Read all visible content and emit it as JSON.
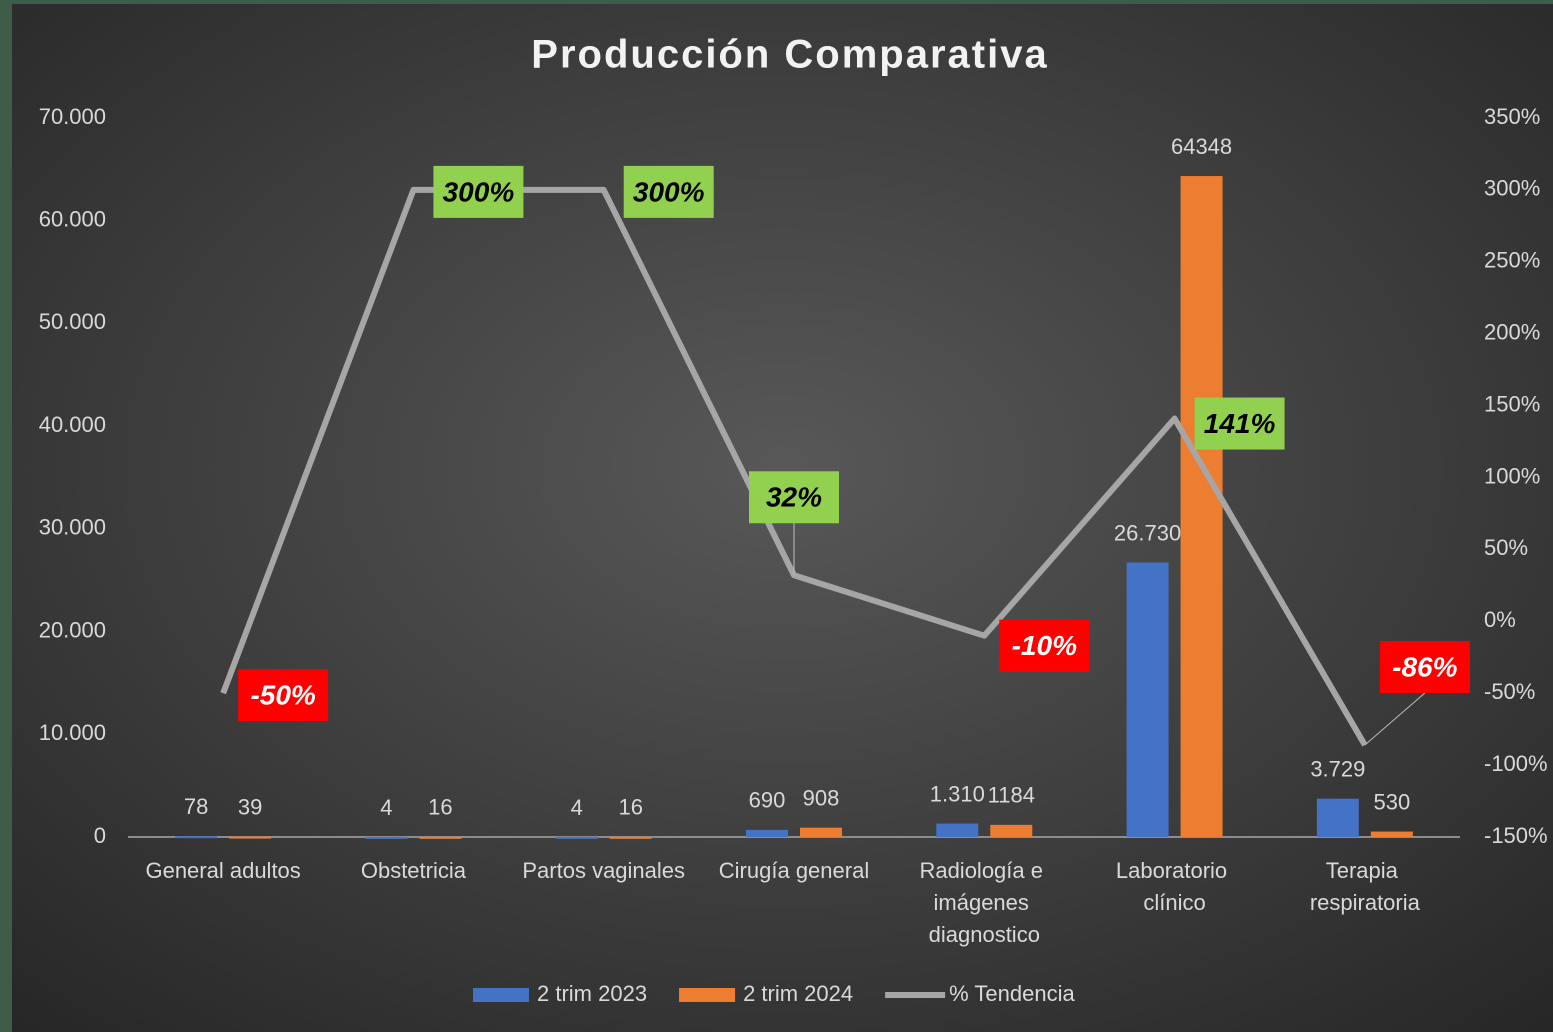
{
  "chart_data": {
    "type": "bar_line",
    "title": "Producción Comparativa",
    "categories": [
      "General adultos",
      "Obstetricia",
      "Partos vaginales",
      "Cirugía general",
      "Radiología e imágenes diagnostico",
      "Laboratorio clínico",
      "Terapia respiratoria"
    ],
    "series": [
      {
        "name": "2 trim 2023",
        "type": "bar",
        "color": "#4472c4",
        "values": [
          78,
          4,
          4,
          690,
          1310,
          26730,
          3729
        ],
        "value_labels": [
          "78",
          "4",
          "4",
          "690",
          "1.310",
          "26.730",
          "3.729"
        ]
      },
      {
        "name": "2 trim 2024",
        "type": "bar",
        "color": "#ed7d31",
        "values": [
          39,
          16,
          16,
          908,
          1184,
          64348,
          530
        ]
      },
      {
        "name": "% Tendencia",
        "type": "line",
        "axis": "y2",
        "color": "#a6a6a6",
        "values": [
          -50,
          300,
          300,
          32,
          -10,
          141,
          -86
        ],
        "value_labels": [
          "-50%",
          "300%",
          "300%",
          "32%",
          "-10%",
          "141%",
          "-86%"
        ],
        "positive_color": "#92d050",
        "negative_color": "#ff0000"
      }
    ],
    "ylim": [
      0,
      70000
    ],
    "yticks": [
      0,
      {
        "value": 10000,
        "label": "10.000"
      },
      {
        "value": 20000,
        "label": "20.000"
      },
      {
        "value": 30000,
        "label": "30.000"
      },
      {
        "value": 40000,
        "label": "40.000"
      },
      {
        "value": 50000,
        "label": "50.000"
      },
      {
        "value": 60000,
        "label": "60.000"
      },
      {
        "value": 70000,
        "label": "70.000"
      }
    ],
    "y2lim": [
      -150,
      350
    ],
    "y2ticks": [
      {
        "value": -150,
        "label": "-150%"
      },
      {
        "value": -100,
        "label": "-100%"
      },
      {
        "value": -50,
        "label": "-50%"
      },
      {
        "value": 0,
        "label": "0%"
      },
      {
        "value": 50,
        "label": "50%"
      },
      {
        "value": 100,
        "label": "100%"
      },
      {
        "value": 150,
        "label": "150%"
      },
      {
        "value": 200,
        "label": "200%"
      },
      {
        "value": 250,
        "label": "250%"
      },
      {
        "value": 300,
        "label": "300%"
      },
      {
        "value": 350,
        "label": "350%"
      }
    ],
    "grid": false,
    "legend": "bottom"
  }
}
